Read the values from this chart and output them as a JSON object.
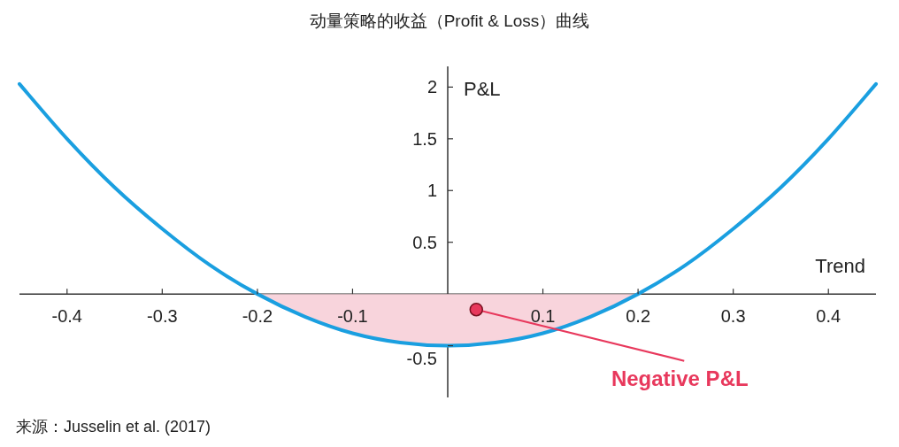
{
  "chart_data": {
    "type": "line",
    "title": "动量策略的收益（Profit & Loss）曲线",
    "xlabel": "Trend",
    "ylabel": "P&L",
    "xlim": [
      -0.45,
      0.45
    ],
    "ylim": [
      -1.0,
      2.2
    ],
    "xticks": [
      -0.4,
      -0.3,
      -0.2,
      -0.1,
      0.1,
      0.2,
      0.3,
      0.4
    ],
    "yticks": [
      -0.5,
      0.5,
      1,
      1.5,
      2
    ],
    "series": [
      {
        "type": "area",
        "color": "#f8d4dc",
        "x": [
          -0.2,
          -0.15,
          -0.1,
          -0.05,
          0,
          0.05,
          0.1,
          0.15,
          0.2
        ],
        "values": [
          0,
          -0.22,
          -0.38,
          -0.47,
          -0.5,
          -0.47,
          -0.38,
          -0.22,
          0
        ]
      },
      {
        "color": "#1a9fe0",
        "x": [
          -0.45,
          -0.4,
          -0.35,
          -0.3,
          -0.25,
          -0.2,
          -0.15,
          -0.1,
          -0.05,
          0,
          0.05,
          0.1,
          0.15,
          0.2,
          0.25,
          0.3,
          0.35,
          0.4,
          0.45
        ],
        "values": [
          2.03,
          1.5,
          1.03,
          0.63,
          0.28,
          0,
          -0.22,
          -0.38,
          -0.47,
          -0.5,
          -0.47,
          -0.38,
          -0.22,
          0,
          0.28,
          0.63,
          1.03,
          1.5,
          2.03
        ]
      }
    ],
    "annotations": [
      {
        "text": "Negative P&L",
        "x": 0.03,
        "y": -0.15
      },
      "来源：Jusselin et al. (2017)"
    ]
  }
}
